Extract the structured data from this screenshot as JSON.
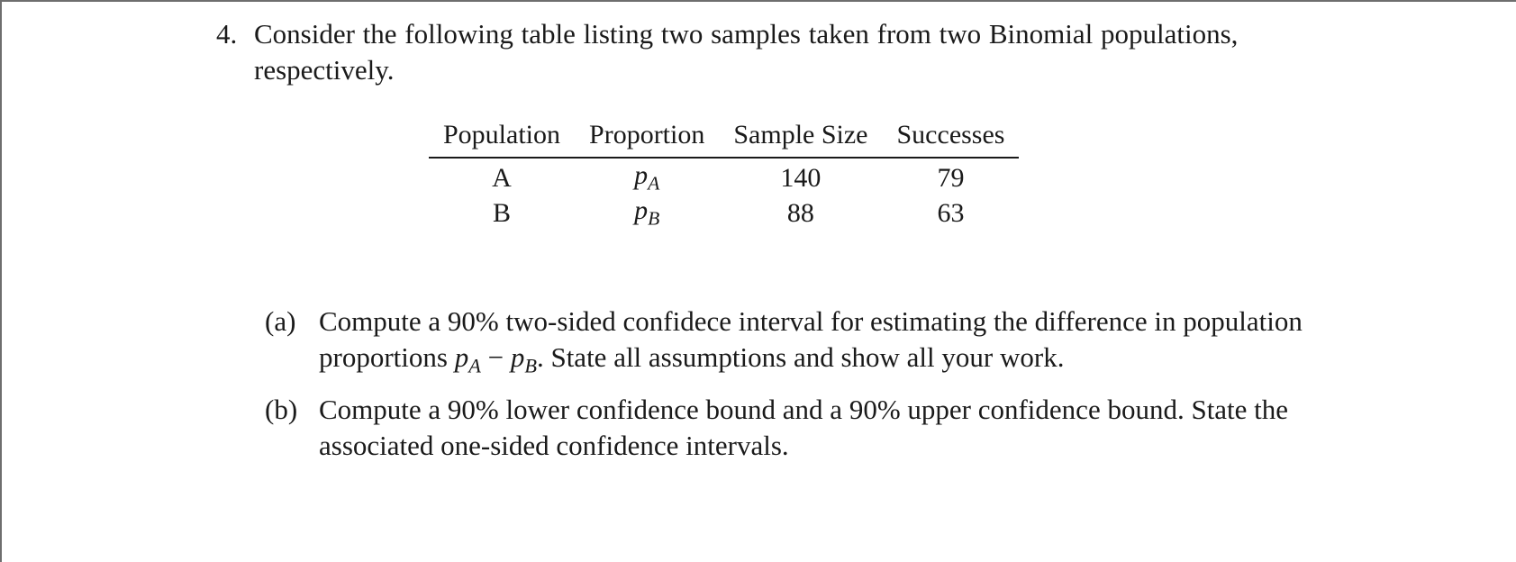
{
  "problem": {
    "number": "4.",
    "text": "Consider the following table listing two samples taken from two Binomial populations, respectively."
  },
  "table": {
    "headers": [
      "Population",
      "Proportion",
      "Sample Size",
      "Successes"
    ],
    "rows": [
      {
        "population": "A",
        "proportion_symbol": "p",
        "proportion_subscript": "A",
        "sample_size": "140",
        "successes": "79"
      },
      {
        "population": "B",
        "proportion_symbol": "p",
        "proportion_subscript": "B",
        "sample_size": "88",
        "successes": "63"
      }
    ]
  },
  "parts": [
    {
      "label": "(a)",
      "text_before": "Compute a 90% two-sided confidece interval for estimating the difference in population proportions ",
      "p1": "p",
      "s1": "A",
      "minus": " − ",
      "p2": "p",
      "s2": "B",
      "text_after": ". State all assumptions and show all your work."
    },
    {
      "label": "(b)",
      "text": "Compute a 90% lower confidence bound and a 90% upper confidence bound. State the associated one-sided confidence intervals."
    }
  ]
}
